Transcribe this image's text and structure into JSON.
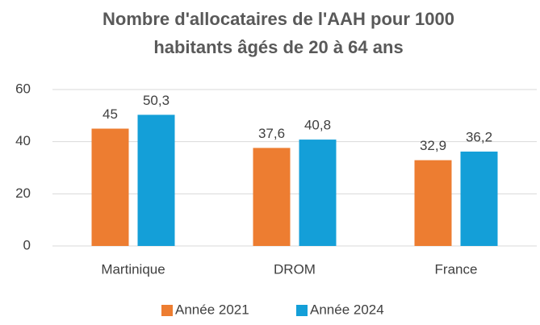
{
  "chart_data": {
    "type": "bar",
    "title": [
      "Nombre d'allocataires de l'AAH pour 1000",
      "habitants âgés de 20 à 64 ans"
    ],
    "categories": [
      "Martinique",
      "DROM",
      "France"
    ],
    "series": [
      {
        "name": "Année 2021",
        "color": "#ed7d31",
        "values": [
          45,
          37.6,
          32.9
        ],
        "value_labels": [
          "45",
          "37,6",
          "32,9"
        ]
      },
      {
        "name": "Année 2024",
        "color": "#149fd8",
        "values": [
          50.3,
          40.8,
          36.2
        ],
        "value_labels": [
          "50,3",
          "40,8",
          "36,2"
        ]
      }
    ],
    "ylim": [
      0,
      60
    ],
    "yticks": [
      0,
      20,
      40,
      60
    ],
    "grid": true,
    "legend": "bottom"
  }
}
